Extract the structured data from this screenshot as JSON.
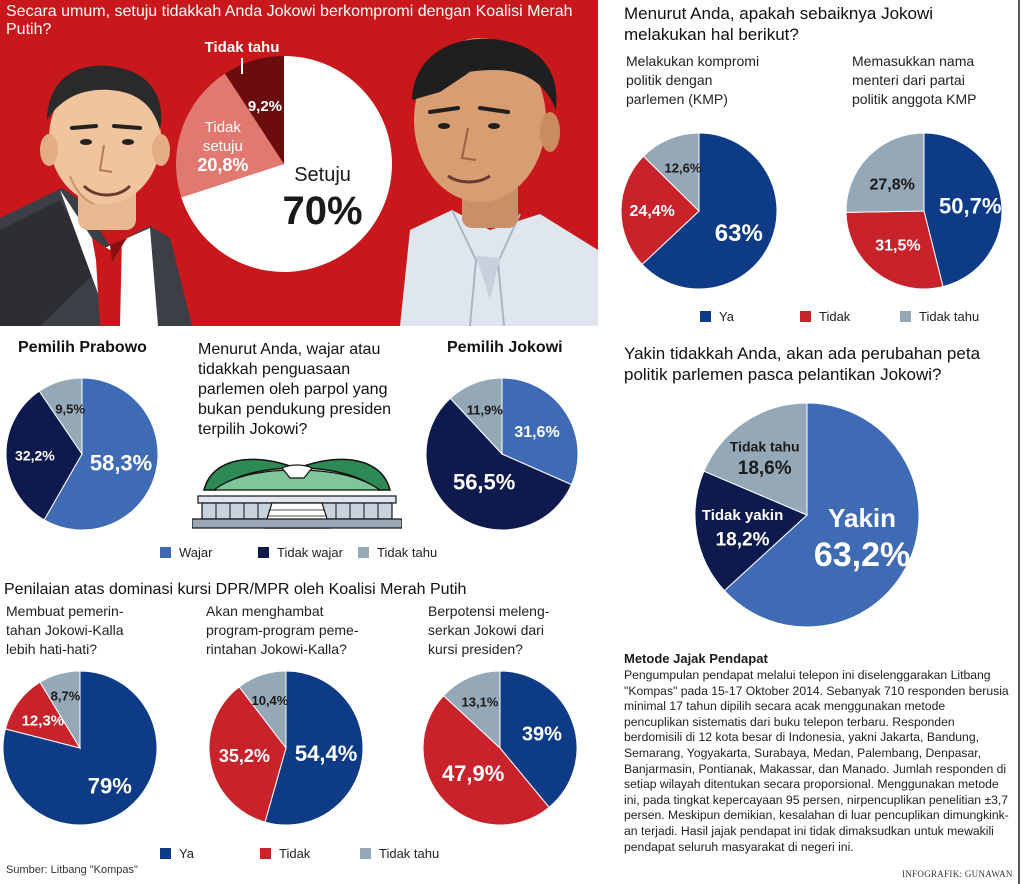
{
  "colors": {
    "red_bg": "#c8181c",
    "navy": "#0e3b86",
    "dark_navy": "#0e1a4d",
    "blue": "#3f6bb5",
    "red": "#c8232a",
    "gray": "#94a8b7",
    "salmon": "#e07a70",
    "maroon": "#6b0d0e",
    "white": "#ffffff"
  },
  "hero": {
    "title": "Secara umum, setuju tidakkah Anda Jokowi berkompromi dengan Koalisi Merah Putih?",
    "slices": [
      {
        "label": "Setuju",
        "value": 70,
        "value_label": "70%"
      },
      {
        "label_line1": "Tidak",
        "label_line2": "setuju",
        "value": 20.8,
        "value_label": "20,8%"
      },
      {
        "label": "Tidak tahu",
        "value": 9.2,
        "value_label": "9,2%"
      }
    ]
  },
  "right_top": {
    "title_line1": "Menurut Anda, apakah sebaiknya Jokowi",
    "title_line2": "melakukan hal berikut?",
    "chart1": {
      "q_line1": "Melakukan kompromi",
      "q_line2": "politik dengan",
      "q_line3": "parlemen (KMP)",
      "slices": [
        {
          "name": "Ya",
          "value": 63,
          "label": "63%"
        },
        {
          "name": "Tidak",
          "value": 24.4,
          "label": "24,4%"
        },
        {
          "name": "Tidak tahu",
          "value": 12.6,
          "label": "12,6%"
        }
      ]
    },
    "chart2": {
      "q_line1": "Memasukkan nama",
      "q_line2": "menteri dari partai",
      "q_line3": "politik anggota KMP",
      "slices": [
        {
          "name": "Ya",
          "value": 50.7,
          "label": "50,7%"
        },
        {
          "name": "Tidak",
          "value": 31.5,
          "label": "31,5%"
        },
        {
          "name": "Tidak tahu",
          "value": 27.8,
          "label": "27,8%"
        }
      ]
    },
    "legend": [
      "Ya",
      "Tidak",
      "Tidak tahu"
    ]
  },
  "middle": {
    "prabowo_title": "Pemilih Prabowo",
    "jokowi_title": "Pemilih Jokowi",
    "question_line1": "Menurut Anda, wajar atau",
    "question_line2": "tidakkah penguasaan",
    "question_line3": "parlemen oleh parpol yang",
    "question_line4": "bukan pendukung presiden",
    "question_line5": "terpilih Jokowi?",
    "prabowo": {
      "slices": [
        {
          "name": "Wajar",
          "value": 58.3,
          "label": "58,3%"
        },
        {
          "name": "Tidak wajar",
          "value": 32.2,
          "label": "32,2%"
        },
        {
          "name": "Tidak tahu",
          "value": 9.5,
          "label": "9,5%"
        }
      ]
    },
    "jokowi": {
      "slices": [
        {
          "name": "Wajar",
          "value": 31.6,
          "label": "31,6%"
        },
        {
          "name": "Tidak wajar",
          "value": 56.5,
          "label": "56,5%"
        },
        {
          "name": "Tidak tahu",
          "value": 11.9,
          "label": "11,9%"
        }
      ]
    },
    "legend": [
      "Wajar",
      "Tidak wajar",
      "Tidak tahu"
    ]
  },
  "peta": {
    "title_line1": "Yakin tidakkah Anda, akan ada perubahan peta",
    "title_line2": "politik parlemen pasca pelantikan Jokowi?",
    "slices": [
      {
        "name": "Yakin",
        "value": 63.2,
        "label": "63,2%"
      },
      {
        "name": "Tidak yakin",
        "value": 18.2,
        "label": "18,2%"
      },
      {
        "name": "Tidak tahu",
        "value": 18.6,
        "label": "18,6%"
      }
    ]
  },
  "bottom": {
    "title": "Penilaian atas dominasi kursi DPR/MPR oleh Koalisi Merah Putih",
    "chart1": {
      "q_line1": "Membuat pemerin-",
      "q_line2": "tahan Jokowi-Kalla",
      "q_line3": "lebih hati-hati?",
      "slices": [
        {
          "name": "Ya",
          "value": 79,
          "label": "79%"
        },
        {
          "name": "Tidak",
          "value": 12.3,
          "label": "12,3%"
        },
        {
          "name": "Tidak tahu",
          "value": 8.7,
          "label": "8,7%"
        }
      ]
    },
    "chart2": {
      "q_line1": "Akan menghambat",
      "q_line2": "program-program peme-",
      "q_line3": "rintahan Jokowi-Kalla?",
      "slices": [
        {
          "name": "Ya",
          "value": 54.4,
          "label": "54,4%"
        },
        {
          "name": "Tidak",
          "value": 35.2,
          "label": "35,2%"
        },
        {
          "name": "Tidak tahu",
          "value": 10.4,
          "label": "10,4%"
        }
      ]
    },
    "chart3": {
      "q_line1": "Berpotensi meleng-",
      "q_line2": "serkan Jokowi dari",
      "q_line3": "kursi presiden?",
      "slices": [
        {
          "name": "Ya",
          "value": 39,
          "label": "39%"
        },
        {
          "name": "Tidak",
          "value": 47.9,
          "label": "47,9%"
        },
        {
          "name": "Tidak tahu",
          "value": 13.1,
          "label": "13,1%"
        }
      ]
    },
    "legend": [
      "Ya",
      "Tidak",
      "Tidak tahu"
    ]
  },
  "method": {
    "title": "Metode Jajak Pendapat",
    "lines": [
      "Pengumpulan pendapat melalui telepon ini diselenggarakan Litbang",
      "\"Kompas\" pada 15-17 Oktober 2014. Sebanyak 710 responden berusia",
      "minimal 17 tahun dipilih secara acak menggunakan metode",
      "pencuplikan sistematis dari buku telepon terbaru.  Responden",
      "berdomisili di 12 kota besar di Indonesia, yakni Jakarta, Bandung,",
      "Semarang, Yogyakarta,  Surabaya, Medan,  Palembang, Denpasar,",
      "Banjarmasin, Pontianak,  Makassar,  dan Manado. Jumlah responden di",
      "setiap wilayah ditentukan secara proporsional. Menggunakan metode",
      "ini, pada tingkat kepercayaan 95 persen, nirpencuplikan penelitian ±3,7",
      "persen. Meskipun demikian, kesalahan di luar pencuplikan dimungkink-",
      "an terjadi. Hasil jajak pendapat ini tidak dimaksudkan untuk mewakili",
      "pendapat seluruh masyarakat di negeri ini."
    ]
  },
  "source": "Sumber: Litbang \"Kompas\"",
  "credit": "INFOGRAFIK: GUNAWAN",
  "chart_data": [
    {
      "type": "pie",
      "title": "Secara umum, setuju tidakkah Anda Jokowi berkompromi dengan Koalisi Merah Putih?",
      "categories": [
        "Setuju",
        "Tidak setuju",
        "Tidak tahu"
      ],
      "values": [
        70,
        20.8,
        9.2
      ]
    },
    {
      "type": "pie",
      "title": "Melakukan kompromi politik dengan parlemen (KMP)",
      "categories": [
        "Ya",
        "Tidak",
        "Tidak tahu"
      ],
      "values": [
        63,
        24.4,
        12.6
      ]
    },
    {
      "type": "pie",
      "title": "Memasukkan nama menteri dari partai politik anggota KMP",
      "categories": [
        "Ya",
        "Tidak",
        "Tidak tahu"
      ],
      "values": [
        50.7,
        31.5,
        27.8
      ]
    },
    {
      "type": "pie",
      "title": "Pemilih Prabowo",
      "categories": [
        "Wajar",
        "Tidak wajar",
        "Tidak tahu"
      ],
      "values": [
        58.3,
        32.2,
        9.5
      ]
    },
    {
      "type": "pie",
      "title": "Pemilih Jokowi",
      "categories": [
        "Wajar",
        "Tidak wajar",
        "Tidak tahu"
      ],
      "values": [
        31.6,
        56.5,
        11.9
      ]
    },
    {
      "type": "pie",
      "title": "Yakin tidakkah Anda, akan ada perubahan peta politik parlemen pasca pelantikan Jokowi?",
      "categories": [
        "Yakin",
        "Tidak yakin",
        "Tidak tahu"
      ],
      "values": [
        63.2,
        18.2,
        18.6
      ]
    },
    {
      "type": "pie",
      "title": "Membuat pemerintahan Jokowi-Kalla lebih hati-hati?",
      "categories": [
        "Ya",
        "Tidak",
        "Tidak tahu"
      ],
      "values": [
        79,
        12.3,
        8.7
      ]
    },
    {
      "type": "pie",
      "title": "Akan menghambat program-program pemerintahan Jokowi-Kalla?",
      "categories": [
        "Ya",
        "Tidak",
        "Tidak tahu"
      ],
      "values": [
        54.4,
        35.2,
        10.4
      ]
    },
    {
      "type": "pie",
      "title": "Berpotensi melengserkan Jokowi dari kursi presiden?",
      "categories": [
        "Ya",
        "Tidak",
        "Tidak tahu"
      ],
      "values": [
        39,
        47.9,
        13.1
      ]
    }
  ]
}
